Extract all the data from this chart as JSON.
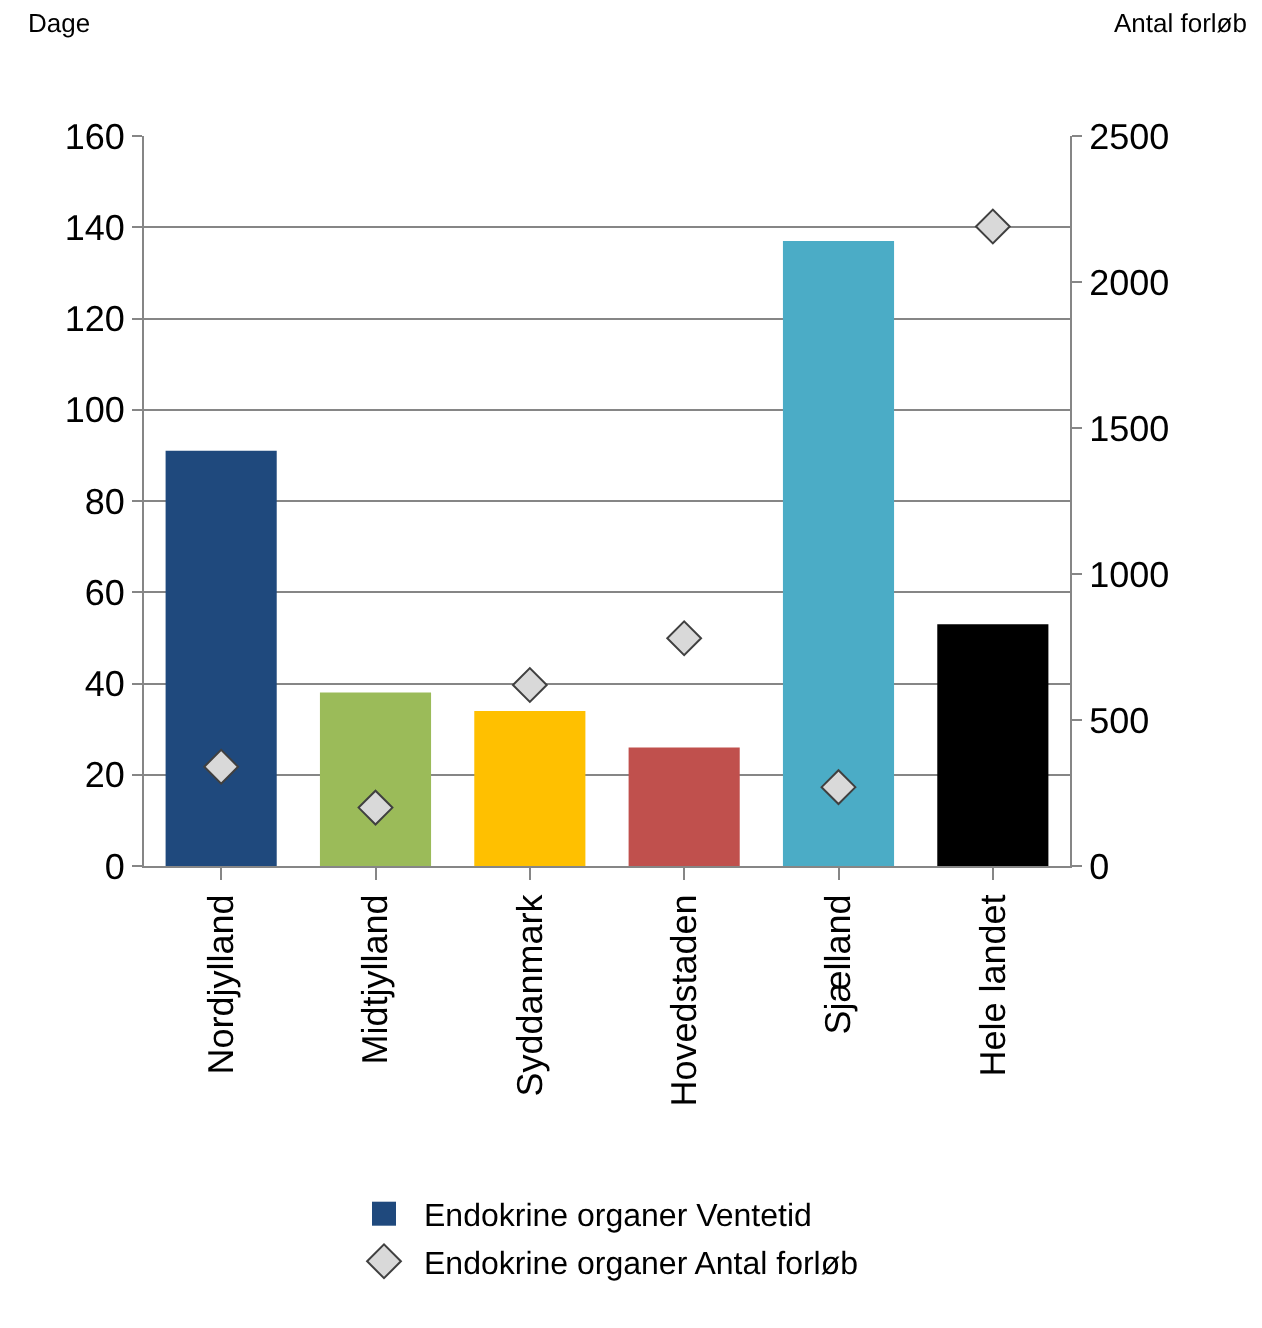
{
  "chart_data": {
    "type": "bar",
    "ylabel": "Dage",
    "y2label": "Antal forløb",
    "categories": [
      "Nordjylland",
      "Midtjylland",
      "Syddanmark",
      "Hovedstaden",
      "Sjælland",
      "Hele landet"
    ],
    "series": [
      {
        "name": "Endokrine organer Ventetid",
        "colors": [
          "#1f497d",
          "#9bbb59",
          "#ffc000",
          "#c0504d",
          "#4bacc6",
          "#000000"
        ],
        "values": [
          91,
          38,
          34,
          26,
          137,
          53
        ]
      },
      {
        "name": "Endokrine organer Antal forløb",
        "type": "scatter",
        "axis": "y2",
        "marker": "diamond",
        "color": "#d9d9d9",
        "values": [
          340,
          200,
          620,
          780,
          270,
          2190
        ]
      }
    ],
    "ylim": [
      0,
      160
    ],
    "yticks": [
      0,
      20,
      40,
      60,
      80,
      100,
      120,
      140,
      160
    ],
    "y2lim": [
      0,
      2500
    ],
    "y2ticks": [
      0,
      500,
      1000,
      1500,
      2000,
      2500
    ],
    "grid": "y",
    "legend": "bottom"
  }
}
